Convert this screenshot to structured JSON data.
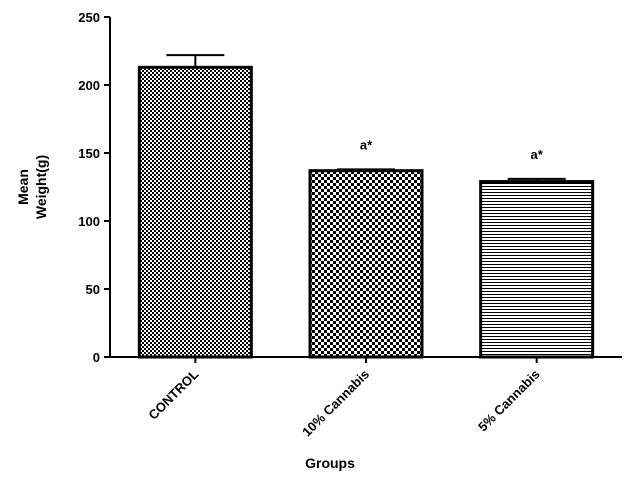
{
  "chart_data": {
    "type": "bar",
    "title": "",
    "xlabel": "Groups",
    "ylabel_lines": [
      "Mean",
      "Weight(g)"
    ],
    "categories": [
      "CONTROL",
      "10% Cannabis",
      "5% Cannabis"
    ],
    "values": [
      213,
      137,
      129
    ],
    "error_upper": [
      222,
      138,
      131
    ],
    "patterns": [
      "fine-checker",
      "coarse-checker",
      "horizontal-lines"
    ],
    "annotations": [
      "",
      "a*",
      "a*"
    ],
    "ylim": [
      0,
      250
    ],
    "yticks": [
      0,
      50,
      100,
      150,
      200,
      250
    ],
    "grid": false,
    "legend": false
  }
}
